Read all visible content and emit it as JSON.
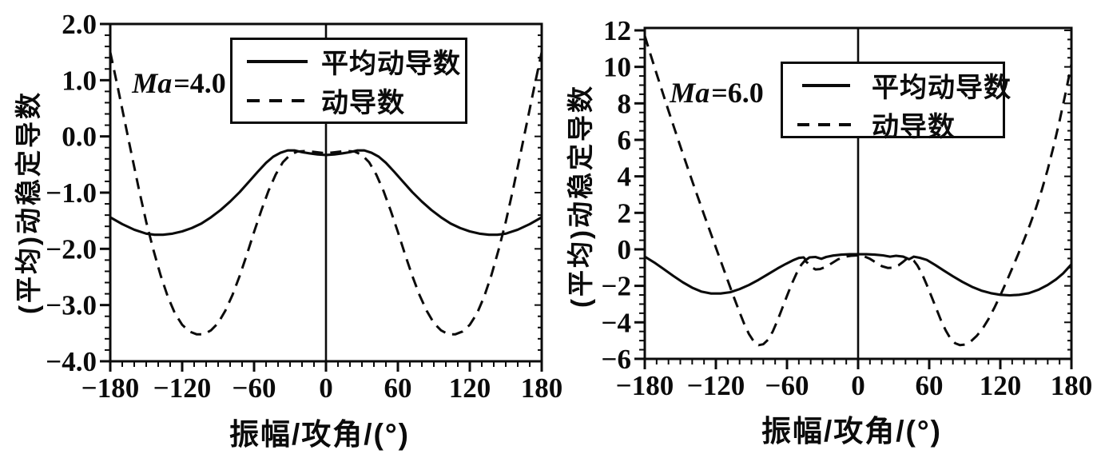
{
  "canvas": {
    "background": "#ffffff",
    "ink_color": "#0b0b0b"
  },
  "chart_data": [
    {
      "type": "line",
      "panel": "left",
      "ma": {
        "prefix": "Ma",
        "suffix": "=4.0"
      },
      "xlabel": "振幅/攻角/(°)",
      "ylabel": "(平均)动稳定导数",
      "xlim": [
        -180,
        180
      ],
      "ylim": [
        -4.0,
        2.0
      ],
      "grid": false,
      "xticks": {
        "major": [
          -180,
          -120,
          -60,
          0,
          60,
          120,
          180
        ],
        "labels": [
          "−180",
          "−120",
          "−60",
          "0",
          "60",
          "120",
          "180"
        ],
        "minor_step": 10
      },
      "yticks": {
        "major": [
          2.0,
          1.0,
          0.0,
          -1.0,
          -2.0,
          -3.0,
          -4.0
        ],
        "labels": [
          "2.0",
          "1.0",
          "0.0",
          "−1.0",
          "−2.0",
          "−3.0",
          "−4.0"
        ],
        "minor_step": 0.2
      },
      "zero_x_line": true,
      "legend": {
        "position": "top-center",
        "entries": [
          {
            "label": "平均动导数",
            "style": "solid"
          },
          {
            "label": "动导数",
            "style": "dashed"
          }
        ]
      },
      "series": [
        {
          "name": "平均动导数",
          "style": "solid",
          "points": [
            [
              -180,
              -1.44
            ],
            [
              -170,
              -1.56
            ],
            [
              -160,
              -1.66
            ],
            [
              -150,
              -1.73
            ],
            [
              -143,
              -1.75
            ],
            [
              -136,
              -1.75
            ],
            [
              -128,
              -1.73
            ],
            [
              -120,
              -1.69
            ],
            [
              -112,
              -1.63
            ],
            [
              -104,
              -1.55
            ],
            [
              -96,
              -1.44
            ],
            [
              -88,
              -1.31
            ],
            [
              -80,
              -1.16
            ],
            [
              -72,
              -0.99
            ],
            [
              -64,
              -0.8
            ],
            [
              -57,
              -0.63
            ],
            [
              -50,
              -0.47
            ],
            [
              -44,
              -0.36
            ],
            [
              -38,
              -0.29
            ],
            [
              -32,
              -0.25
            ],
            [
              -26,
              -0.25
            ],
            [
              -20,
              -0.28
            ],
            [
              -14,
              -0.3
            ],
            [
              -7,
              -0.32
            ],
            [
              0,
              -0.33
            ],
            [
              7,
              -0.32
            ],
            [
              14,
              -0.3
            ],
            [
              20,
              -0.28
            ],
            [
              26,
              -0.25
            ],
            [
              32,
              -0.25
            ],
            [
              38,
              -0.29
            ],
            [
              44,
              -0.36
            ],
            [
              50,
              -0.47
            ],
            [
              57,
              -0.63
            ],
            [
              64,
              -0.8
            ],
            [
              72,
              -0.99
            ],
            [
              80,
              -1.16
            ],
            [
              88,
              -1.31
            ],
            [
              96,
              -1.44
            ],
            [
              104,
              -1.55
            ],
            [
              112,
              -1.63
            ],
            [
              120,
              -1.69
            ],
            [
              128,
              -1.73
            ],
            [
              136,
              -1.75
            ],
            [
              143,
              -1.75
            ],
            [
              150,
              -1.73
            ],
            [
              160,
              -1.66
            ],
            [
              170,
              -1.56
            ],
            [
              180,
              -1.44
            ]
          ]
        },
        {
          "name": "动导数",
          "style": "dashed",
          "points": [
            [
              -180,
              1.5
            ],
            [
              -174,
              0.9
            ],
            [
              -168,
              0.28
            ],
            [
              -162,
              -0.34
            ],
            [
              -156,
              -0.95
            ],
            [
              -150,
              -1.52
            ],
            [
              -144,
              -2.02
            ],
            [
              -138,
              -2.47
            ],
            [
              -132,
              -2.85
            ],
            [
              -126,
              -3.15
            ],
            [
              -120,
              -3.35
            ],
            [
              -114,
              -3.47
            ],
            [
              -108,
              -3.52
            ],
            [
              -102,
              -3.52
            ],
            [
              -96,
              -3.45
            ],
            [
              -90,
              -3.32
            ],
            [
              -84,
              -3.1
            ],
            [
              -78,
              -2.82
            ],
            [
              -72,
              -2.48
            ],
            [
              -66,
              -2.1
            ],
            [
              -60,
              -1.7
            ],
            [
              -54,
              -1.32
            ],
            [
              -48,
              -0.97
            ],
            [
              -42,
              -0.68
            ],
            [
              -36,
              -0.46
            ],
            [
              -30,
              -0.33
            ],
            [
              -24,
              -0.27
            ],
            [
              -16,
              -0.26
            ],
            [
              -8,
              -0.28
            ],
            [
              0,
              -0.3
            ],
            [
              8,
              -0.28
            ],
            [
              16,
              -0.26
            ],
            [
              24,
              -0.27
            ],
            [
              30,
              -0.33
            ],
            [
              36,
              -0.46
            ],
            [
              42,
              -0.68
            ],
            [
              48,
              -0.97
            ],
            [
              54,
              -1.32
            ],
            [
              60,
              -1.7
            ],
            [
              66,
              -2.1
            ],
            [
              72,
              -2.48
            ],
            [
              78,
              -2.82
            ],
            [
              84,
              -3.1
            ],
            [
              90,
              -3.32
            ],
            [
              96,
              -3.45
            ],
            [
              102,
              -3.52
            ],
            [
              108,
              -3.52
            ],
            [
              114,
              -3.47
            ],
            [
              120,
              -3.35
            ],
            [
              126,
              -3.15
            ],
            [
              132,
              -2.85
            ],
            [
              138,
              -2.47
            ],
            [
              144,
              -2.02
            ],
            [
              150,
              -1.52
            ],
            [
              156,
              -0.95
            ],
            [
              162,
              -0.34
            ],
            [
              168,
              0.28
            ],
            [
              174,
              0.9
            ],
            [
              180,
              1.5
            ]
          ]
        }
      ]
    },
    {
      "type": "line",
      "panel": "right",
      "ma": {
        "prefix": "Ma",
        "suffix": "=6.0"
      },
      "xlabel": "振幅/攻角/(°)",
      "ylabel": "(平均)动稳定导数",
      "xlim": [
        -180,
        180
      ],
      "ylim": [
        -6,
        12
      ],
      "grid": false,
      "xticks": {
        "major": [
          -180,
          -120,
          -60,
          0,
          60,
          120,
          180
        ],
        "labels": [
          "−180",
          "−120",
          "−60",
          "0",
          "60",
          "120",
          "180"
        ],
        "minor_step": 10
      },
      "yticks": {
        "major": [
          12,
          10,
          8,
          6,
          4,
          2,
          0,
          -2,
          -4,
          -6
        ],
        "labels": [
          "12",
          "10",
          "8",
          "6",
          "4",
          "2",
          "0",
          "−2",
          "−4",
          "−6"
        ],
        "minor_step": 0.5
      },
      "zero_x_line": true,
      "legend": {
        "position": "top-center",
        "entries": [
          {
            "label": "平均动导数",
            "style": "solid"
          },
          {
            "label": "动导数",
            "style": "dashed"
          }
        ]
      },
      "series": [
        {
          "name": "平均动导数",
          "style": "solid",
          "points": [
            [
              -180,
              -0.4
            ],
            [
              -172,
              -0.72
            ],
            [
              -164,
              -1.08
            ],
            [
              -156,
              -1.45
            ],
            [
              -148,
              -1.8
            ],
            [
              -140,
              -2.1
            ],
            [
              -132,
              -2.32
            ],
            [
              -124,
              -2.42
            ],
            [
              -116,
              -2.42
            ],
            [
              -108,
              -2.35
            ],
            [
              -100,
              -2.18
            ],
            [
              -92,
              -1.95
            ],
            [
              -84,
              -1.67
            ],
            [
              -76,
              -1.36
            ],
            [
              -68,
              -1.05
            ],
            [
              -61,
              -0.8
            ],
            [
              -55,
              -0.6
            ],
            [
              -50,
              -0.47
            ],
            [
              -46,
              -0.44
            ],
            [
              -44,
              -0.58
            ],
            [
              -41,
              -0.44
            ],
            [
              -36,
              -0.42
            ],
            [
              -31,
              -0.52
            ],
            [
              -27,
              -0.42
            ],
            [
              -21,
              -0.34
            ],
            [
              -14,
              -0.29
            ],
            [
              -7,
              -0.27
            ],
            [
              0,
              -0.27
            ],
            [
              7,
              -0.27
            ],
            [
              14,
              -0.29
            ],
            [
              21,
              -0.33
            ],
            [
              27,
              -0.4
            ],
            [
              32,
              -0.35
            ],
            [
              38,
              -0.4
            ],
            [
              43,
              -0.54
            ],
            [
              47,
              -0.4
            ],
            [
              52,
              -0.46
            ],
            [
              58,
              -0.58
            ],
            [
              65,
              -0.85
            ],
            [
              72,
              -1.15
            ],
            [
              80,
              -1.48
            ],
            [
              88,
              -1.78
            ],
            [
              96,
              -2.05
            ],
            [
              104,
              -2.26
            ],
            [
              112,
              -2.4
            ],
            [
              120,
              -2.49
            ],
            [
              128,
              -2.52
            ],
            [
              136,
              -2.49
            ],
            [
              144,
              -2.4
            ],
            [
              152,
              -2.22
            ],
            [
              160,
              -1.95
            ],
            [
              167,
              -1.65
            ],
            [
              173,
              -1.32
            ],
            [
              180,
              -0.82
            ]
          ]
        },
        {
          "name": "动导数",
          "style": "dashed",
          "points": [
            [
              -180,
              11.7
            ],
            [
              -175,
              10.65
            ],
            [
              -170,
              9.62
            ],
            [
              -165,
              8.6
            ],
            [
              -160,
              7.6
            ],
            [
              -155,
              6.62
            ],
            [
              -150,
              5.65
            ],
            [
              -145,
              4.7
            ],
            [
              -140,
              3.75
            ],
            [
              -135,
              2.82
            ],
            [
              -130,
              1.9
            ],
            [
              -125,
              1.0
            ],
            [
              -120,
              0.1
            ],
            [
              -115,
              -0.8
            ],
            [
              -110,
              -1.7
            ],
            [
              -105,
              -2.6
            ],
            [
              -100,
              -3.45
            ],
            [
              -96,
              -4.1
            ],
            [
              -92,
              -4.65
            ],
            [
              -88,
              -5.05
            ],
            [
              -84,
              -5.25
            ],
            [
              -80,
              -5.2
            ],
            [
              -76,
              -4.95
            ],
            [
              -72,
              -4.5
            ],
            [
              -68,
              -3.9
            ],
            [
              -64,
              -3.22
            ],
            [
              -60,
              -2.55
            ],
            [
              -56,
              -1.9
            ],
            [
              -52,
              -1.32
            ],
            [
              -48,
              -0.85
            ],
            [
              -45,
              -0.62
            ],
            [
              -43,
              -0.72
            ],
            [
              -40,
              -0.95
            ],
            [
              -36,
              -1.1
            ],
            [
              -32,
              -1.08
            ],
            [
              -27,
              -0.95
            ],
            [
              -22,
              -0.75
            ],
            [
              -17,
              -0.55
            ],
            [
              -12,
              -0.42
            ],
            [
              -6,
              -0.35
            ],
            [
              0,
              -0.33
            ],
            [
              5,
              -0.38
            ],
            [
              10,
              -0.52
            ],
            [
              15,
              -0.72
            ],
            [
              20,
              -0.92
            ],
            [
              25,
              -1.02
            ],
            [
              30,
              -1.0
            ],
            [
              34,
              -0.88
            ],
            [
              38,
              -0.68
            ],
            [
              41,
              -0.52
            ],
            [
              44,
              -0.5
            ],
            [
              47,
              -0.62
            ],
            [
              50,
              -0.88
            ],
            [
              54,
              -1.35
            ],
            [
              58,
              -1.95
            ],
            [
              62,
              -2.6
            ],
            [
              66,
              -3.25
            ],
            [
              70,
              -3.9
            ],
            [
              74,
              -4.45
            ],
            [
              78,
              -4.9
            ],
            [
              82,
              -5.15
            ],
            [
              86,
              -5.25
            ],
            [
              90,
              -5.22
            ],
            [
              95,
              -5.05
            ],
            [
              100,
              -4.75
            ],
            [
              105,
              -4.35
            ],
            [
              110,
              -3.82
            ],
            [
              115,
              -3.2
            ],
            [
              120,
              -2.52
            ],
            [
              125,
              -1.8
            ],
            [
              130,
              -1.05
            ],
            [
              135,
              -0.28
            ],
            [
              140,
              0.52
            ],
            [
              145,
              1.35
            ],
            [
              150,
              2.25
            ],
            [
              155,
              3.25
            ],
            [
              160,
              4.38
            ],
            [
              165,
              5.65
            ],
            [
              170,
              7.05
            ],
            [
              175,
              8.55
            ],
            [
              180,
              10.15
            ]
          ]
        }
      ]
    }
  ]
}
